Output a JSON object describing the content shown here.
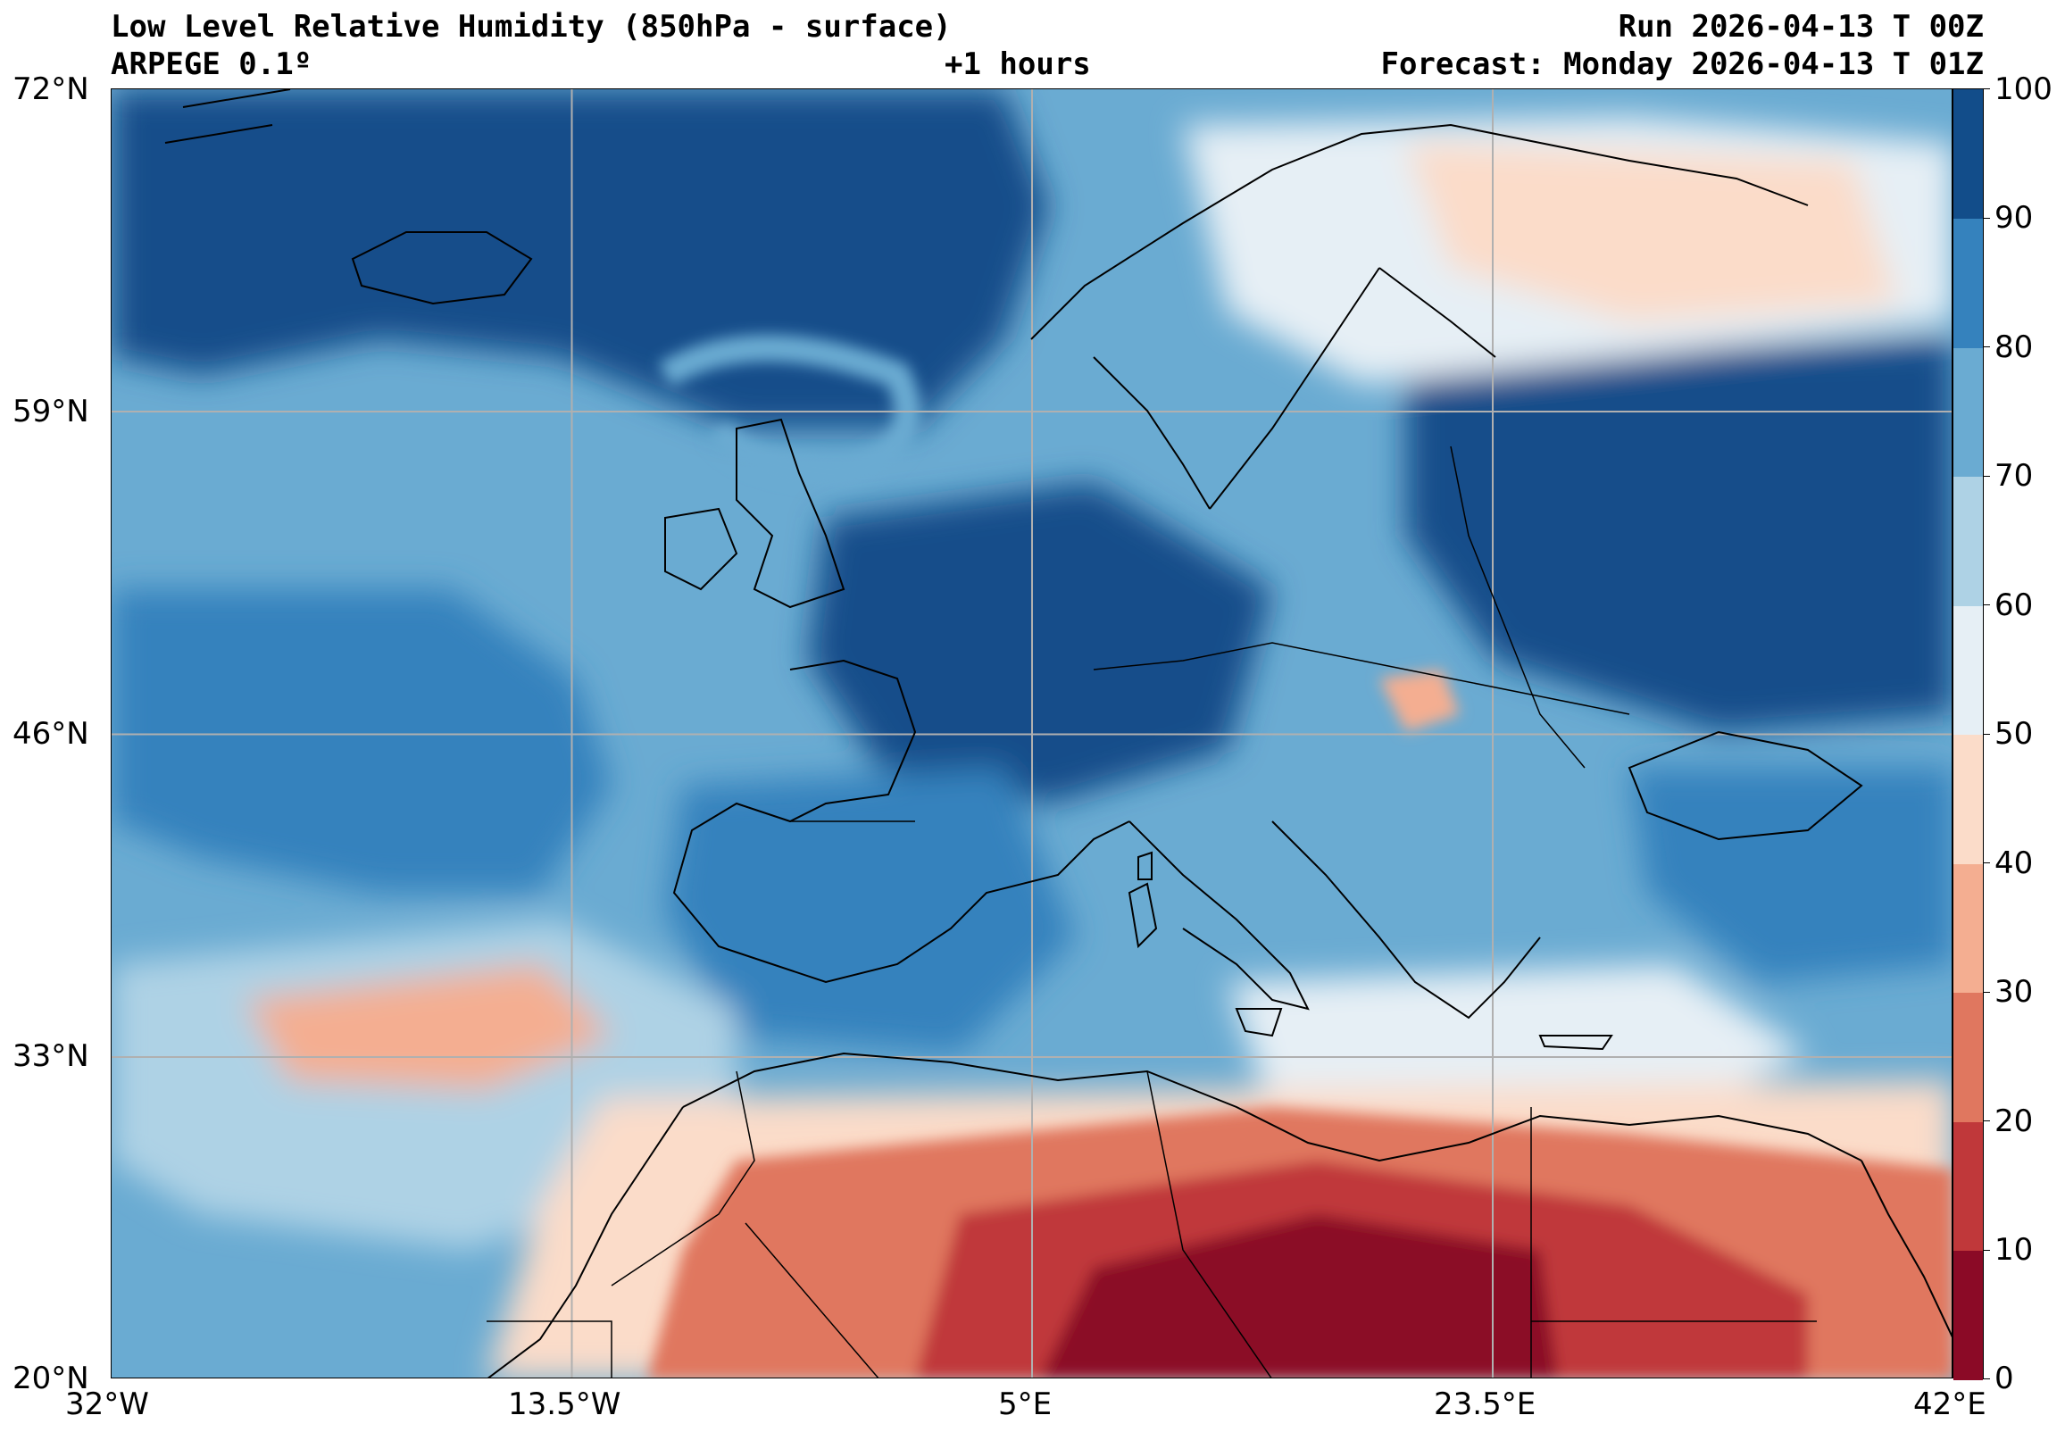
{
  "header": {
    "title_line1": "Low Level Relative Humidity (850hPa - surface)",
    "model": "ARPEGE 0.1º",
    "lead_time": "+1 hours",
    "run": "Run 2026-04-13 T 00Z",
    "forecast": "Forecast: Monday 2026-04-13 T 01Z"
  },
  "axes": {
    "lat_labels": [
      "72°N",
      "59°N",
      "46°N",
      "33°N",
      "20°N"
    ],
    "lon_labels": [
      "32°W",
      "13.5°W",
      "5°E",
      "23.5°E",
      "42°E"
    ]
  },
  "colorbar": {
    "labels": [
      "100",
      "90",
      "80",
      "70",
      "60",
      "50",
      "40",
      "30",
      "20",
      "10",
      "0"
    ],
    "levels": [
      0,
      10,
      20,
      30,
      40,
      50,
      60,
      70,
      80,
      90,
      100
    ],
    "colors": [
      "#8b0a26",
      "#c0383a",
      "#e0775f",
      "#f4ae91",
      "#fbdcc9",
      "#e6eff5",
      "#aed2e5",
      "#6aabd2",
      "#3582bd",
      "#124d8a"
    ]
  },
  "map": {
    "extent": {
      "lon": [
        -32,
        42
      ],
      "lat": [
        20,
        72
      ]
    },
    "gridlines": true,
    "gridline_color": "#b0b0b0",
    "coastline_color": "#000000"
  }
}
